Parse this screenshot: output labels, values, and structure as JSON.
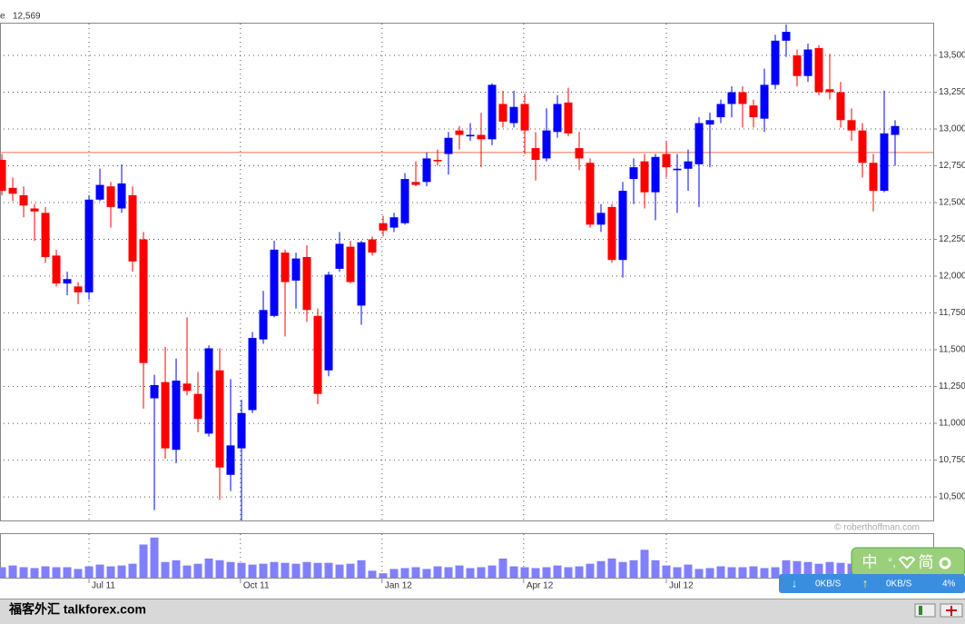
{
  "chart_data": {
    "type": "candlestick",
    "header_prefix": "e",
    "header_value": "12,569",
    "credit": "© roberthoffman.com",
    "watermark": "福客外汇 talkforex.com",
    "widget": {
      "lang": "中",
      "mode": "简",
      "down_speed": "0KB/S",
      "up_speed": "0KB/S",
      "cpu": "4%"
    },
    "up_color": "#0000ff",
    "down_color": "#ff0000",
    "volume_color": "#8080ff",
    "ref_line_color": "#e07050",
    "ref_line": 12840,
    "grid": true,
    "x": [
      0,
      1,
      2,
      3,
      4,
      5,
      6,
      7,
      8,
      9,
      10,
      11,
      12,
      13,
      14,
      15,
      16,
      17,
      18,
      19,
      20,
      21,
      22,
      23,
      24,
      25,
      26,
      27,
      28,
      29,
      30,
      31,
      32,
      33,
      34,
      35,
      36,
      37,
      38,
      39,
      40,
      41,
      42,
      43,
      44,
      45,
      46,
      47,
      48,
      49,
      50,
      51,
      52,
      53,
      54,
      55,
      56,
      57,
      58,
      59,
      60,
      61,
      62,
      63,
      64,
      65,
      66,
      67,
      68,
      69,
      70,
      71,
      72,
      73,
      74,
      75,
      76,
      77,
      78,
      79,
      80,
      81,
      82
    ],
    "open": [
      12790,
      12600,
      12550,
      12460,
      12430,
      12140,
      11950,
      11930,
      11890,
      12520,
      12610,
      12460,
      12550,
      12250,
      11170,
      11280,
      10820,
      11270,
      11200,
      10930,
      11360,
      10650,
      10830,
      11090,
      11570,
      11730,
      12160,
      11970,
      12130,
      11730,
      11360,
      12050,
      12200,
      11800,
      12250,
      12360,
      12330,
      12360,
      12640,
      12640,
      12790,
      12830,
      12990,
      12950,
      12960,
      12930,
      13170,
      13040,
      13170,
      12870,
      12800,
      12980,
      13180,
      12870,
      12770,
      12350,
      12470,
      12110,
      12660,
      12780,
      12570,
      12830,
      12720,
      12730,
      12760,
      13030,
      13080,
      13170,
      13250,
      13160,
      13070,
      13300,
      13600,
      13500,
      13360,
      13550,
      13270,
      13250,
      13060,
      12990,
      12770,
      12580,
      12960
    ],
    "high": [
      12830,
      12670,
      12610,
      12490,
      12470,
      12180,
      12030,
      11960,
      12550,
      12730,
      12640,
      12760,
      12610,
      12300,
      11330,
      11520,
      11440,
      11720,
      11350,
      11530,
      11510,
      11300,
      11160,
      11620,
      11900,
      12240,
      12180,
      12160,
      12210,
      11780,
      12030,
      12300,
      12240,
      12240,
      12270,
      12410,
      12430,
      12700,
      12780,
      12840,
      12860,
      12980,
      13020,
      13040,
      13110,
      13310,
      13260,
      13260,
      13240,
      12980,
      13140,
      13230,
      13280,
      12980,
      12800,
      12490,
      12490,
      12640,
      12800,
      12830,
      12830,
      12920,
      12830,
      12860,
      13080,
      13110,
      13200,
      13290,
      13290,
      13200,
      13410,
      13640,
      13710,
      13540,
      13580,
      13570,
      13510,
      13320,
      13140,
      13040,
      12830,
      13260,
      13060
    ],
    "low": [
      12550,
      12510,
      12400,
      12240,
      12090,
      11930,
      11870,
      11810,
      11840,
      12510,
      12330,
      12430,
      12030,
      11100,
      10410,
      10760,
      10730,
      11190,
      10940,
      10910,
      10480,
      10540,
      10340,
      11070,
      11540,
      11720,
      11590,
      11780,
      11690,
      11130,
      11320,
      12030,
      11950,
      11670,
      12140,
      12270,
      12300,
      12350,
      12610,
      12610,
      12750,
      12690,
      12860,
      12920,
      12740,
      12890,
      13010,
      13010,
      12830,
      12650,
      12780,
      12940,
      12950,
      12720,
      12330,
      12300,
      12090,
      11990,
      12490,
      12460,
      12380,
      12670,
      12430,
      12580,
      12470,
      12740,
      13040,
      13080,
      13010,
      13010,
      12980,
      13270,
      13490,
      13290,
      13320,
      13230,
      13200,
      13010,
      12920,
      12670,
      12440,
      12570,
      12750
    ],
    "close": [
      12580,
      12560,
      12480,
      12440,
      12130,
      11950,
      11980,
      11890,
      12520,
      12620,
      12470,
      12630,
      12100,
      11410,
      11260,
      10830,
      11290,
      11220,
      11030,
      11510,
      10700,
      10850,
      11070,
      11580,
      11770,
      12180,
      11960,
      12120,
      11770,
      11200,
      12010,
      12220,
      11960,
      12230,
      12160,
      12310,
      12400,
      12660,
      12620,
      12800,
      12780,
      12940,
      12960,
      12960,
      12930,
      13300,
      13050,
      13150,
      12990,
      12790,
      12990,
      13170,
      12970,
      12800,
      12350,
      12430,
      12110,
      12580,
      12740,
      12570,
      12810,
      12740,
      12730,
      12780,
      13040,
      13060,
      13170,
      13250,
      13170,
      13080,
      13300,
      13600,
      13660,
      13360,
      13540,
      13250,
      13250,
      13060,
      12990,
      12770,
      12580,
      12970,
      13020
    ],
    "volume": [
      12,
      14,
      12,
      11,
      13,
      12,
      12,
      10,
      13,
      15,
      13,
      14,
      16,
      38,
      46,
      18,
      20,
      14,
      16,
      22,
      20,
      18,
      17,
      15,
      16,
      18,
      17,
      16,
      18,
      17,
      17,
      15,
      16,
      20,
      8,
      5,
      10,
      11,
      12,
      10,
      13,
      12,
      14,
      11,
      12,
      14,
      22,
      13,
      12,
      11,
      12,
      14,
      12,
      13,
      16,
      19,
      22,
      18,
      20,
      32,
      20,
      14,
      12,
      15,
      10,
      11,
      13,
      12,
      12,
      13,
      11,
      12,
      20,
      19,
      18,
      16,
      18,
      17,
      16,
      15,
      18,
      16,
      18
    ],
    "vlim": [
      0,
      50
    ],
    "xlim": [
      -0.17,
      85.5
    ],
    "xticks": [
      {
        "value": 8,
        "label": "Jul 11"
      },
      {
        "value": 21.9,
        "label": "Oct 11"
      },
      {
        "value": 34.9,
        "label": "Jan 12"
      },
      {
        "value": 47.9,
        "label": "Apr 12"
      },
      {
        "value": 61,
        "label": "Jul 12"
      }
    ],
    "ylim": [
      10340,
      13716
    ],
    "yticks": [
      {
        "value": 10500,
        "label": "10,500"
      },
      {
        "value": 10750,
        "label": "10,750"
      },
      {
        "value": 11000,
        "label": "11,000"
      },
      {
        "value": 11250,
        "label": "11,250"
      },
      {
        "value": 11500,
        "label": "11,500"
      },
      {
        "value": 11750,
        "label": "11,750"
      },
      {
        "value": 12000,
        "label": "12,000"
      },
      {
        "value": 12250,
        "label": "12,250"
      },
      {
        "value": 12500,
        "label": "12,500"
      },
      {
        "value": 12750,
        "label": "12,750"
      },
      {
        "value": 13000,
        "label": "13,000"
      },
      {
        "value": 13250,
        "label": "13,250"
      },
      {
        "value": 13500,
        "label": "13,500"
      }
    ]
  }
}
